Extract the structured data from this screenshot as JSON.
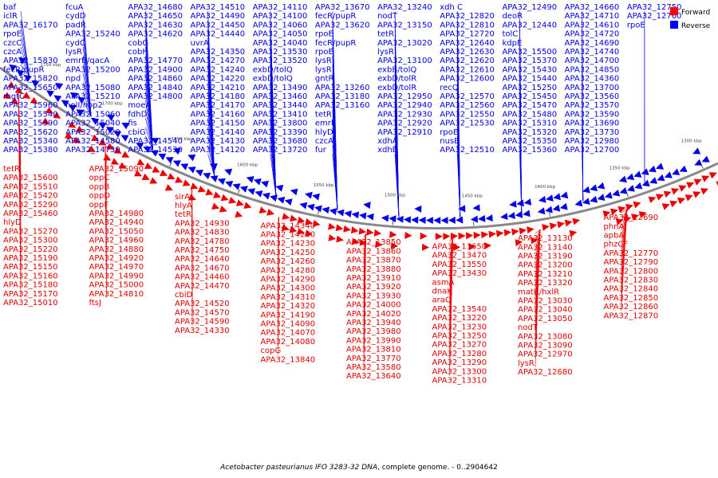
{
  "caption": {
    "italic": "Acetobacter pasteurianus IFO 3283-32 DNA",
    "rest": ", complete genome. - 0..2904642"
  },
  "legend": [
    {
      "label": "Forward",
      "color": "#ff0000"
    },
    {
      "label": "Reverse",
      "color": "#0000ff"
    }
  ],
  "ticks": [
    "1750 kbp",
    "1700 kbp",
    "1650 kbp",
    "1600 kbp",
    "1550 kbp",
    "1500 kbp",
    "1450 kbp",
    "1400 kbp",
    "1350 kbp",
    "1300 kbp"
  ],
  "reverse_labels": [
    "baf",
    "iclR",
    "APA32_16170",
    "rpoE",
    "czcC",
    "czcA",
    "APA32_15830",
    "fecR/pupR",
    "APA32_15820",
    "APA32_15650",
    "mgtC",
    "APA32_15960",
    "APA32_15540",
    "APA32_15390",
    "APA32_15620",
    "APA32_15340",
    "APA32_15380",
    "fcuA",
    "cydD",
    "padR",
    "APA32_15240",
    "cydC",
    "lysR",
    "emrB/qacA",
    "APA32_15200",
    "npd",
    "APA32_15080",
    "APA32_15210",
    "nolI/nop2",
    "APA32_15060",
    "APA32_15040",
    "APA32_15020",
    "APA32_14580",
    "APA32_14730",
    "APA32_14680",
    "APA32_14650",
    "APA32_14630",
    "APA32_14620",
    "cobG",
    "cobH",
    "APA32_14770",
    "APA32_14900",
    "APA32_14860",
    "APA32_14840",
    "APA32_14800",
    "moeA",
    "fdhD",
    "fis",
    "cbiG",
    "APA32_14540",
    "APA32_14530",
    "APA32_14510",
    "APA32_14490",
    "APA32_14450",
    "APA32_14440",
    "uvrA",
    "APA32_14350",
    "APA32_14270",
    "APA32_14240",
    "APA32_14220",
    "APA32_14210",
    "APA32_14180",
    "APA32_14170",
    "APA32_14160",
    "APA32_14150",
    "APA32_14140",
    "APA32_14130",
    "APA32_14120",
    "APA32_14110",
    "APA32_14100",
    "APA32_14060",
    "APA32_14050",
    "APA32_14040",
    "APA32_13530",
    "APA32_13520",
    "exbD/tolQ",
    "exbD/tolQ",
    "APA32_13490",
    "APA32_13460",
    "APA32_13440",
    "APA32_13410",
    "APA32_13800",
    "APA32_13390",
    "APA32_13680",
    "APA32_13720",
    "APA32_13670",
    "fecR/pupR",
    "APA32_13620",
    "rpoE",
    "fecR/pupR",
    "rpoE",
    "lysR",
    "lysR",
    "gntR",
    "APA32_13260",
    "APA32_13180",
    "APA32_13160",
    "tetR",
    "emrE",
    "hlyD",
    "czcA",
    "fur",
    "APA32_13240",
    "nodT",
    "APA32_13150",
    "tetR",
    "APA32_13020",
    "lysR",
    "APA32_13100",
    "exbB/tolQ",
    "exbD/tolR",
    "exbD/tolR",
    "APA32_12950",
    "APA32_12940",
    "APA32_12930",
    "APA32_12920",
    "APA32_12910",
    "xdhA",
    "xdhB",
    "xdh C",
    "APA32_12820",
    "APA32_12810",
    "APA32_12720",
    "APA32_12640",
    "APA32_12630",
    "APA32_12620",
    "APA32_12610",
    "APA32_12600",
    "recQ",
    "APA32_12570",
    "APA32_12560",
    "APA32_12550",
    "APA32_12530",
    "rpoE",
    "nusB",
    "APA32_12510",
    "APA32_12490",
    "deoR",
    "APA32_12440",
    "tolC",
    "kdpE",
    "APA32_15500",
    "APA32_15370",
    "APA32_15430",
    "APA32_15440",
    "APA32_15250",
    "APA32_15450",
    "APA32_15470",
    "APA32_15480",
    "APA32_15310",
    "APA32_15320",
    "APA32_15350",
    "APA32_15360",
    "APA32_14660",
    "APA32_14710",
    "APA32_14610",
    "APA32_14720",
    "APA32_14690",
    "APA32_14740",
    "APA32_14700",
    "APA32_14850",
    "APA32_14360",
    "APA32_13700",
    "APA32_13560",
    "APA32_13570",
    "APA32_13590",
    "APA32_13690",
    "APA32_13730",
    "APA32_12980",
    "APA32_12700",
    "APA32_12750",
    "APA32_12760",
    "rpoE"
  ],
  "forward_labels": [
    "tetR",
    "APA32_15600",
    "APA32_15510",
    "APA32_15420",
    "APA32_15290",
    "APA32_15460",
    "hlyD",
    "APA32_15270",
    "APA32_15300",
    "APA32_15220",
    "APA32_15190",
    "APA32_15150",
    "APA32_15160",
    "APA32_15180",
    "APA32_15170",
    "APA32_15010",
    "APA32_15090",
    "oppC",
    "oppB",
    "oppD",
    "oppF",
    "APA32_14980",
    "APA32_14940",
    "APA32_15050",
    "APA32_14960",
    "APA32_14880",
    "APA32_14920",
    "APA32_14970",
    "APA32_14990",
    "APA32_15000",
    "APA32_14810",
    "ftsJ",
    "sirA",
    "hlyA",
    "tetR",
    "APA32_14930",
    "APA32_14830",
    "APA32_14780",
    "APA32_14750",
    "APA32_14640",
    "APA32_14670",
    "APA32_14460",
    "APA32_14470",
    "cbiD",
    "APA32_14520",
    "APA32_14570",
    "APA32_14590",
    "APA32_14330",
    "APA32_14340",
    "APA32_14200",
    "APA32_14230",
    "APA32_14250",
    "APA32_14260",
    "APA32_14280",
    "APA32_14290",
    "APA32_14300",
    "APA32_14310",
    "APA32_14320",
    "APA32_14190",
    "APA32_14090",
    "APA32_14070",
    "APA32_14080",
    "copG",
    "APA32_13840",
    "APA32_13850",
    "APA32_13860",
    "APA32_13870",
    "APA32_13880",
    "APA32_13910",
    "APA32_13920",
    "APA32_13930",
    "APA32_14000",
    "APA32_14020",
    "APA32_13940",
    "APA32_13980",
    "APA32_13990",
    "APA32_13810",
    "APA32_13770",
    "APA32_13580",
    "APA32_13640",
    "APA32_13650",
    "APA32_13470",
    "APA32_13550",
    "APA32_13430",
    "asmA",
    "dnaK",
    "araC",
    "APA32_13540",
    "APA32_13220",
    "APA32_13230",
    "APA32_13250",
    "APA32_13270",
    "APA32_13280",
    "APA32_13290",
    "APA32_13300",
    "APA32_13310",
    "APA32_13130",
    "APA32_13140",
    "APA32_13190",
    "APA32_13200",
    "APA32_13210",
    "APA32_13320",
    "matR/hxlR",
    "APA32_13030",
    "APA32_13040",
    "APA32_13050",
    "nodT",
    "APA32_13080",
    "APA32_13090",
    "APA32_12970",
    "lysR",
    "APA32_12680",
    "APA32_12690",
    "phnA",
    "apbA",
    "phzCF",
    "APA32_12770",
    "APA32_12790",
    "APA32_12800",
    "APA32_12830",
    "APA32_12840",
    "APA32_12850",
    "APA32_12860",
    "APA32_12870"
  ]
}
